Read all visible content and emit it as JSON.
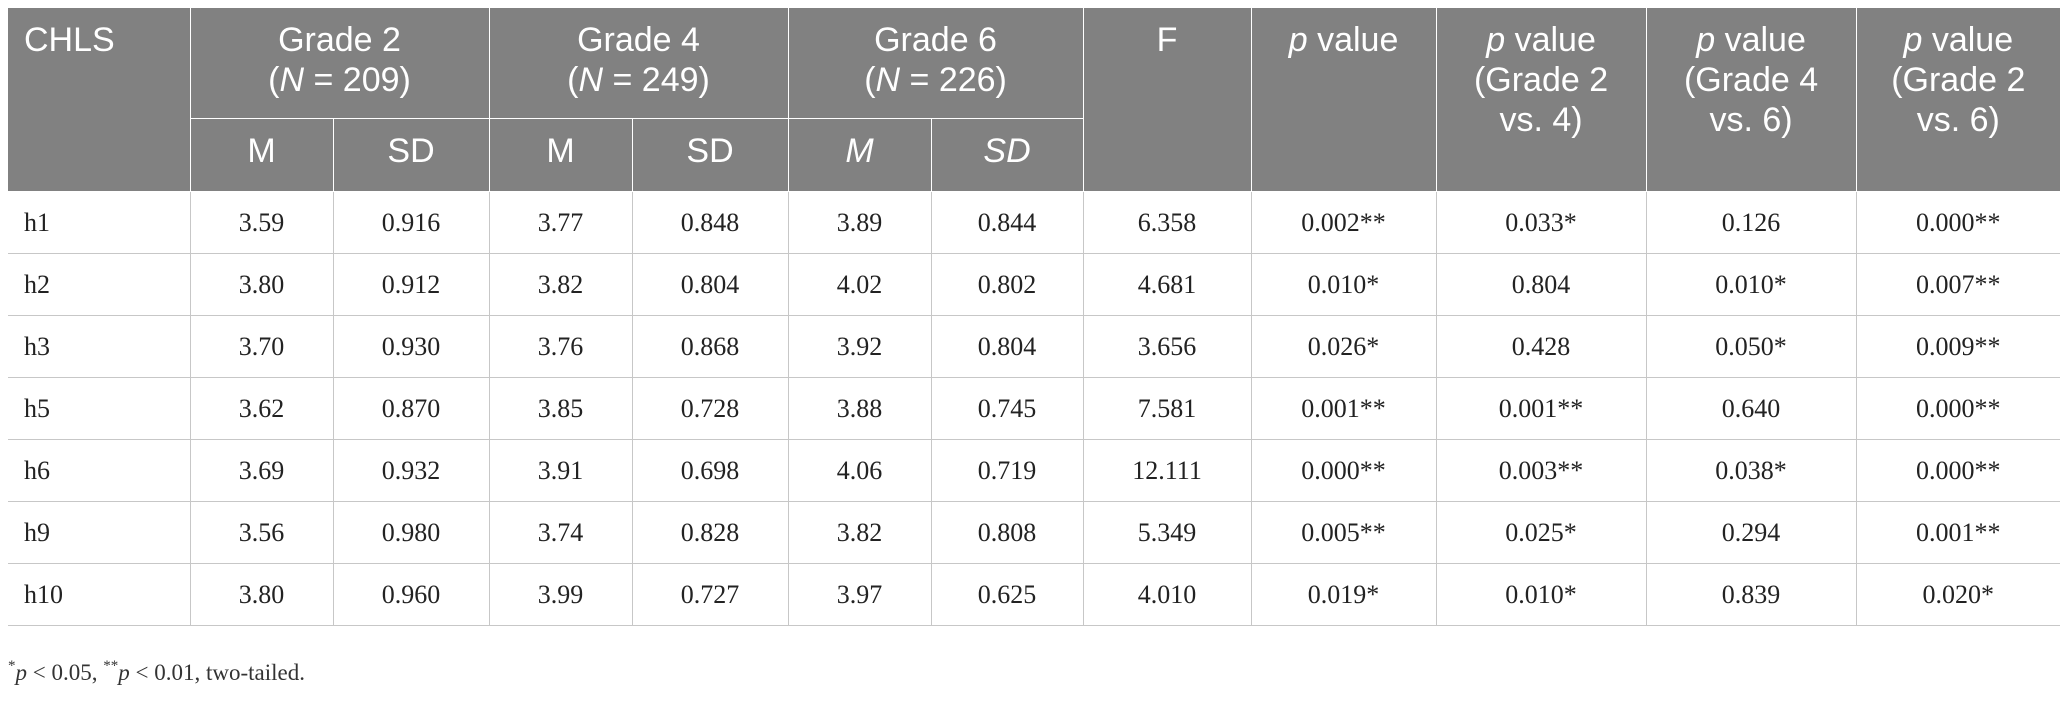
{
  "header": {
    "chls": "CHLS",
    "grade2": {
      "label": "Grade 2",
      "n_open": "(",
      "n_var": "N",
      "n_rest": " = 209)"
    },
    "grade4": {
      "label": "Grade 4",
      "n_open": "(",
      "n_var": "N",
      "n_rest": " = 249)"
    },
    "grade6": {
      "label": "Grade 6",
      "n_open": "(",
      "n_var": "N",
      "n_rest": " = 226)"
    },
    "f": "F",
    "p_italic": "p",
    "p_value": " value",
    "p_value_24_line1": " value",
    "p_value_24_line2": "(Grade 2",
    "p_value_24_line3": "vs. 4)",
    "p_value_46_line2": "(Grade 4",
    "p_value_46_line3": "vs. 6)",
    "p_value_26_line2": "(Grade 2",
    "p_value_26_line3": "vs. 6)",
    "m": "M",
    "sd": "SD"
  },
  "rows": [
    [
      "h1",
      "3.59",
      "0.916",
      "3.77",
      "0.848",
      "3.89",
      "0.844",
      "6.358",
      "0.002**",
      "0.033*",
      "0.126",
      "0.000**"
    ],
    [
      "h2",
      "3.80",
      "0.912",
      "3.82",
      "0.804",
      "4.02",
      "0.802",
      "4.681",
      "0.010*",
      "0.804",
      "0.010*",
      "0.007**"
    ],
    [
      "h3",
      "3.70",
      "0.930",
      "3.76",
      "0.868",
      "3.92",
      "0.804",
      "3.656",
      "0.026*",
      "0.428",
      "0.050*",
      "0.009**"
    ],
    [
      "h5",
      "3.62",
      "0.870",
      "3.85",
      "0.728",
      "3.88",
      "0.745",
      "7.581",
      "0.001**",
      "0.001**",
      "0.640",
      "0.000**"
    ],
    [
      "h6",
      "3.69",
      "0.932",
      "3.91",
      "0.698",
      "4.06",
      "0.719",
      "12.111",
      "0.000**",
      "0.003**",
      "0.038*",
      "0.000**"
    ],
    [
      "h9",
      "3.56",
      "0.980",
      "3.74",
      "0.828",
      "3.82",
      "0.808",
      "5.349",
      "0.005**",
      "0.025*",
      "0.294",
      "0.001**"
    ],
    [
      "h10",
      "3.80",
      "0.960",
      "3.99",
      "0.727",
      "3.97",
      "0.625",
      "4.010",
      "0.019*",
      "0.010*",
      "0.839",
      "0.020*"
    ]
  ],
  "footnote": {
    "star1": "*",
    "p1": "p",
    "t1": " < 0.05, ",
    "star2": "**",
    "p2": "p",
    "t2": " < 0.01, two-tailed."
  },
  "colors": {
    "header_bg": "#818181",
    "grid": "#c7c7c7"
  }
}
